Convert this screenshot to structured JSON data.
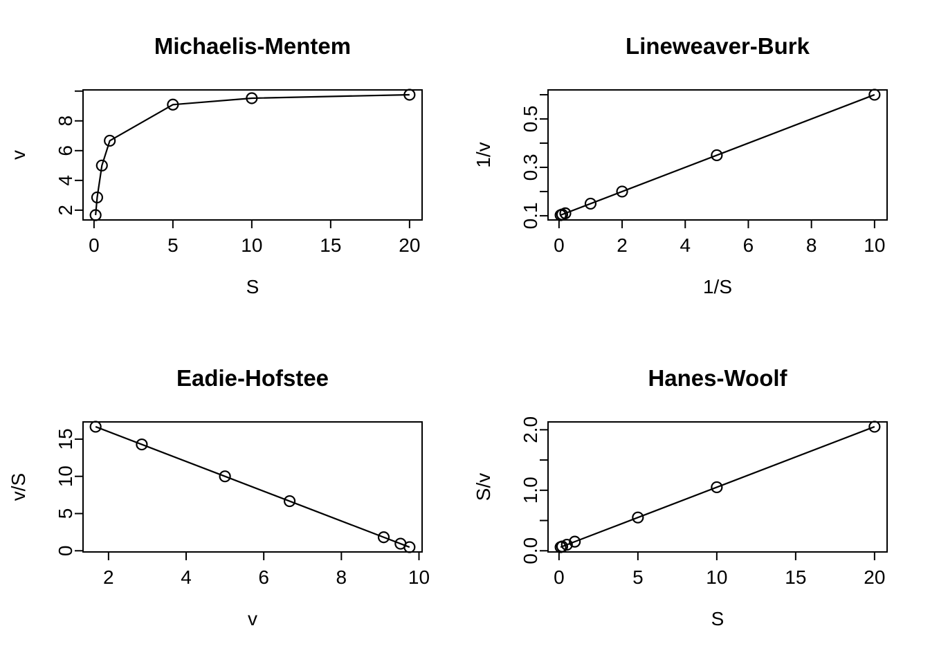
{
  "figure": {
    "background": "#ffffff",
    "foreground": "#000000",
    "layout": "2x2-grid"
  },
  "chart_data": [
    {
      "id": "michaelis-mentem",
      "type": "line",
      "title": "Michaelis-Mentem",
      "xlabel": "S",
      "ylabel": "v",
      "marker": "open-circle",
      "line_color": "#000000",
      "grid": false,
      "legend": null,
      "x": [
        0.1,
        0.2,
        0.5,
        1,
        5,
        10,
        20
      ],
      "y": [
        1.6667,
        2.8571,
        5,
        6.6667,
        9.0909,
        9.5238,
        9.7561
      ],
      "xlim": [
        -0.696,
        20.796
      ],
      "ylim": [
        1.343,
        10.08
      ],
      "xticks": [
        {
          "v": 0,
          "label": "0"
        },
        {
          "v": 5,
          "label": "5"
        },
        {
          "v": 10,
          "label": "10"
        },
        {
          "v": 15,
          "label": "15"
        },
        {
          "v": 20,
          "label": "20"
        }
      ],
      "yticks": [
        {
          "v": 2,
          "label": "2"
        },
        {
          "v": 4,
          "label": "4"
        },
        {
          "v": 6,
          "label": "6"
        },
        {
          "v": 8,
          "label": "8"
        },
        {
          "v": 10,
          "label": ""
        }
      ]
    },
    {
      "id": "lineweaver-burk",
      "type": "line",
      "title": "Lineweaver-Burk",
      "xlabel": "1/S",
      "ylabel": "1/v",
      "marker": "open-circle",
      "line_color": "#000000",
      "grid": false,
      "legend": null,
      "x": [
        0.05,
        0.1,
        0.2,
        1,
        2,
        5,
        10
      ],
      "y": [
        0.1025,
        0.105,
        0.11,
        0.15,
        0.2,
        0.35,
        0.6
      ],
      "xlim": [
        -0.348,
        10.398
      ],
      "ylim": [
        0.0826,
        0.6199
      ],
      "xticks": [
        {
          "v": 0,
          "label": "0"
        },
        {
          "v": 2,
          "label": "2"
        },
        {
          "v": 4,
          "label": "4"
        },
        {
          "v": 6,
          "label": "6"
        },
        {
          "v": 8,
          "label": "8"
        },
        {
          "v": 10,
          "label": "10"
        }
      ],
      "yticks": [
        {
          "v": 0.1,
          "label": "0.1"
        },
        {
          "v": 0.2,
          "label": ""
        },
        {
          "v": 0.3,
          "label": "0.3"
        },
        {
          "v": 0.4,
          "label": ""
        },
        {
          "v": 0.5,
          "label": "0.5"
        },
        {
          "v": 0.6,
          "label": ""
        }
      ]
    },
    {
      "id": "eadie-hofstee",
      "type": "line",
      "title": "Eadie-Hofstee",
      "xlabel": "v",
      "ylabel": "v/S",
      "marker": "open-circle",
      "line_color": "#000000",
      "grid": false,
      "legend": null,
      "x": [
        1.6667,
        2.8571,
        5,
        6.6667,
        9.0909,
        9.5238,
        9.7561
      ],
      "y": [
        16.6667,
        14.2857,
        10,
        6.6667,
        1.8182,
        0.9524,
        0.4878
      ],
      "xlim": [
        1.343,
        10.08
      ],
      "ylim": [
        -0.159,
        17.314
      ],
      "xticks": [
        {
          "v": 2,
          "label": "2"
        },
        {
          "v": 4,
          "label": "4"
        },
        {
          "v": 6,
          "label": "6"
        },
        {
          "v": 8,
          "label": "8"
        },
        {
          "v": 10,
          "label": "10"
        }
      ],
      "yticks": [
        {
          "v": 0,
          "label": "0"
        },
        {
          "v": 5,
          "label": "5"
        },
        {
          "v": 10,
          "label": "10"
        },
        {
          "v": 15,
          "label": "15"
        }
      ]
    },
    {
      "id": "hanes-woolf",
      "type": "line",
      "title": "Hanes-Woolf",
      "xlabel": "S",
      "ylabel": "S/v",
      "marker": "open-circle",
      "line_color": "#000000",
      "grid": false,
      "legend": null,
      "x": [
        0.1,
        0.2,
        0.5,
        1,
        5,
        10,
        20
      ],
      "y": [
        0.06,
        0.07,
        0.1,
        0.15,
        0.55,
        1.05,
        2.05
      ],
      "xlim": [
        -0.696,
        20.796
      ],
      "ylim": [
        -0.0196,
        2.1296
      ],
      "xticks": [
        {
          "v": 0,
          "label": "0"
        },
        {
          "v": 5,
          "label": "5"
        },
        {
          "v": 10,
          "label": "10"
        },
        {
          "v": 15,
          "label": "15"
        },
        {
          "v": 20,
          "label": "20"
        }
      ],
      "yticks": [
        {
          "v": 0,
          "label": "0.0"
        },
        {
          "v": 0.5,
          "label": ""
        },
        {
          "v": 1,
          "label": "1.0"
        },
        {
          "v": 1.5,
          "label": ""
        },
        {
          "v": 2,
          "label": "2.0"
        }
      ]
    }
  ]
}
